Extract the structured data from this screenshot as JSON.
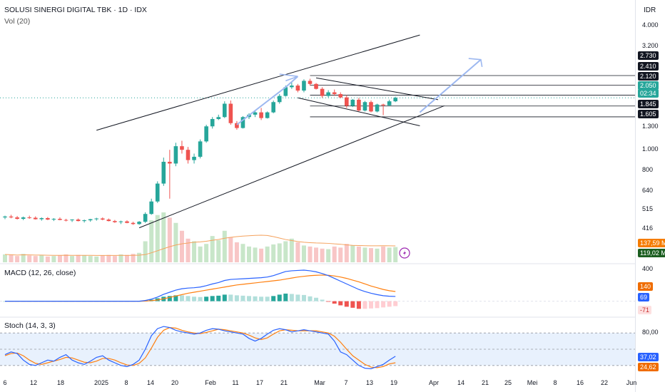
{
  "header": {
    "symbol_line": "SOLUSI SINERGI DIGITAL TBK · 1D · IDX",
    "vol_label": "Vol (20)",
    "currency": "IDR",
    "macd_label": "MACD (12, 26, close)",
    "stoch_label": "Stoch (14, 3, 3)"
  },
  "price_axis": {
    "ticks": [
      "4.000",
      "3.200",
      "1.300",
      "1.000",
      "800",
      "640",
      "515",
      "416"
    ],
    "tags": [
      {
        "text": "2.730",
        "color": "#131722"
      },
      {
        "text": "2.410",
        "color": "#131722"
      },
      {
        "text": "2.120",
        "color": "#131722"
      },
      {
        "text": "2.050",
        "color": "#26a69a"
      },
      {
        "text": "02:34",
        "color": "#26a69a"
      },
      {
        "text": "1.845",
        "color": "#131722"
      },
      {
        "text": "1.605",
        "color": "#131722"
      },
      {
        "text": "137,59 M",
        "color": "#f57c00"
      },
      {
        "text": "119,02 M",
        "color": "#1b5e20"
      }
    ]
  },
  "macd_axis": {
    "ticks": [
      "400"
    ],
    "tags": [
      {
        "text": "140",
        "color": "#ef6c00"
      },
      {
        "text": "69",
        "color": "#2962ff"
      },
      {
        "text": "-71",
        "color": "#ef9a9a"
      }
    ]
  },
  "stoch_axis": {
    "ticks": [
      "80,00"
    ],
    "tags": [
      {
        "text": "37,02",
        "color": "#2962ff"
      },
      {
        "text": "24,62",
        "color": "#ef6c00"
      }
    ]
  },
  "x_axis": [
    "6",
    "12",
    "18",
    "2025",
    "8",
    "14",
    "20",
    "Feb",
    "11",
    "17",
    "21",
    "Mar",
    "7",
    "13",
    "19",
    "Apr",
    "14",
    "21",
    "25",
    "Mei",
    "8",
    "16",
    "22",
    "Jun"
  ],
  "colors": {
    "up": "#26a69a",
    "down": "#ef5350",
    "macd": "#2962ff",
    "signal": "#ff7f0e",
    "grid": "#f0f3fa",
    "trend": "#131722",
    "arrow": "#9db8f0"
  },
  "chart_data": [
    {
      "type": "candlestick",
      "title": "SOLUSI SINERGI DIGITAL TBK · 1D · IDX",
      "y_scale": "log",
      "ylim": [
        350,
        5000
      ],
      "ohlc": [
        [
          440,
          450,
          430,
          445
        ],
        [
          445,
          455,
          435,
          440
        ],
        [
          440,
          448,
          428,
          432
        ],
        [
          432,
          445,
          425,
          440
        ],
        [
          440,
          450,
          432,
          438
        ],
        [
          438,
          446,
          428,
          430
        ],
        [
          430,
          440,
          422,
          436
        ],
        [
          436,
          442,
          425,
          428
        ],
        [
          428,
          436,
          420,
          432
        ],
        [
          432,
          440,
          424,
          426
        ],
        [
          426,
          432,
          418,
          424
        ],
        [
          424,
          430,
          415,
          428
        ],
        [
          428,
          434,
          418,
          420
        ],
        [
          420,
          428,
          412,
          424
        ],
        [
          424,
          432,
          416,
          430
        ],
        [
          430,
          438,
          422,
          434
        ],
        [
          434,
          440,
          424,
          428
        ],
        [
          428,
          434,
          418,
          420
        ],
        [
          420,
          426,
          410,
          414
        ],
        [
          414,
          422,
          404,
          418
        ],
        [
          418,
          424,
          408,
          410
        ],
        [
          410,
          416,
          400,
          404
        ],
        [
          404,
          420,
          400,
          416
        ],
        [
          416,
          470,
          410,
          460
        ],
        [
          460,
          560,
          455,
          540
        ],
        [
          540,
          700,
          530,
          680
        ],
        [
          680,
          950,
          660,
          900
        ],
        [
          900,
          1050,
          560,
          880
        ],
        [
          880,
          1150,
          850,
          1100
        ],
        [
          1100,
          1180,
          1000,
          1050
        ],
        [
          1050,
          1090,
          880,
          920
        ],
        [
          920,
          1000,
          880,
          960
        ],
        [
          960,
          1200,
          940,
          1170
        ],
        [
          1170,
          1450,
          1150,
          1420
        ],
        [
          1420,
          1600,
          1380,
          1560
        ],
        [
          1560,
          1650,
          1540,
          1600
        ],
        [
          1600,
          1960,
          1580,
          1900
        ],
        [
          1900,
          1980,
          1450,
          1480
        ],
        [
          1480,
          1520,
          1360,
          1390
        ],
        [
          1390,
          1620,
          1380,
          1600
        ],
        [
          1600,
          1680,
          1560,
          1650
        ],
        [
          1650,
          1750,
          1600,
          1700
        ],
        [
          1700,
          1800,
          1540,
          1580
        ],
        [
          1580,
          1720,
          1570,
          1700
        ],
        [
          1700,
          1980,
          1680,
          1940
        ],
        [
          1940,
          2150,
          1900,
          2100
        ],
        [
          2100,
          2400,
          2080,
          2350
        ],
        [
          2350,
          2500,
          2300,
          2400
        ],
        [
          2400,
          2450,
          2200,
          2250
        ],
        [
          2250,
          2600,
          2200,
          2550
        ],
        [
          2550,
          2620,
          2400,
          2450
        ],
        [
          2450,
          2480,
          2280,
          2300
        ],
        [
          2300,
          2350,
          2050,
          2100
        ],
        [
          2100,
          2260,
          2060,
          2200
        ],
        [
          2200,
          2280,
          2100,
          2150
        ],
        [
          2150,
          2200,
          2040,
          2060
        ],
        [
          2060,
          2120,
          1800,
          1850
        ],
        [
          1850,
          2020,
          1820,
          2000
        ],
        [
          2000,
          2050,
          1720,
          1740
        ],
        [
          1740,
          1970,
          1720,
          1940
        ],
        [
          1940,
          1980,
          1700,
          1720
        ],
        [
          1720,
          1900,
          1700,
          1880
        ],
        [
          1880,
          1900,
          1640,
          1860
        ],
        [
          1860,
          2000,
          1840,
          1960
        ],
        [
          1960,
          2080,
          1940,
          2050
        ]
      ],
      "trendlines": [
        {
          "name": "upper channel",
          "from": [
            15,
            1350
          ],
          "to": [
            68,
            4600
          ]
        },
        {
          "name": "lower channel",
          "from": [
            22,
            385
          ],
          "to": [
            72,
            1850
          ]
        },
        {
          "name": "flag top",
          "from": [
            51,
            2650
          ],
          "to": [
            71,
            2000
          ]
        },
        {
          "name": "flag bottom",
          "from": [
            48,
            2050
          ],
          "to": [
            68,
            1430
          ]
        }
      ],
      "levels": [
        2730,
        2410,
        2120,
        1845,
        1605
      ]
    },
    {
      "type": "bar",
      "title": "Vol (20)",
      "values": [
        15,
        14,
        12,
        16,
        13,
        12,
        14,
        11,
        12,
        13,
        15,
        12,
        14,
        13,
        12,
        11,
        13,
        14,
        12,
        15,
        14,
        16,
        18,
        40,
        80,
        90,
        95,
        85,
        75,
        60,
        45,
        40,
        30,
        35,
        50,
        42,
        60,
        48,
        38,
        35,
        30,
        28,
        26,
        30,
        34,
        36,
        40,
        45,
        38,
        32,
        30,
        28,
        26,
        25,
        30,
        28,
        35,
        32,
        30,
        28,
        27,
        26,
        30,
        28,
        29
      ],
      "ma": 137.59,
      "last": 119.02
    },
    {
      "type": "line",
      "title": "MACD (12, 26, close)",
      "series": [
        {
          "name": "MACD",
          "values": [
            0,
            0,
            0,
            0,
            0,
            0,
            0,
            0,
            0,
            0,
            0,
            0,
            0,
            0,
            0,
            0,
            0,
            0,
            0,
            0,
            0,
            0,
            0,
            10,
            30,
            60,
            100,
            130,
            160,
            180,
            190,
            195,
            205,
            225,
            250,
            270,
            300,
            315,
            320,
            325,
            330,
            335,
            340,
            350,
            370,
            400,
            430,
            440,
            445,
            450,
            440,
            425,
            400,
            370,
            330,
            290,
            250,
            210,
            170,
            140,
            115,
            95,
            80,
            72,
            69
          ]
        },
        {
          "name": "Signal",
          "values": [
            0,
            0,
            0,
            0,
            0,
            0,
            0,
            0,
            0,
            0,
            0,
            0,
            0,
            0,
            0,
            0,
            0,
            0,
            0,
            0,
            0,
            0,
            0,
            2,
            8,
            18,
            35,
            55,
            75,
            95,
            115,
            130,
            145,
            160,
            175,
            190,
            205,
            220,
            235,
            245,
            255,
            265,
            275,
            285,
            295,
            305,
            320,
            335,
            350,
            360,
            370,
            375,
            378,
            375,
            365,
            350,
            330,
            305,
            280,
            250,
            220,
            195,
            170,
            152,
            140
          ]
        }
      ],
      "histogram": [
        0,
        0,
        0,
        0,
        0,
        0,
        0,
        0,
        0,
        0,
        0,
        0,
        0,
        0,
        0,
        0,
        0,
        0,
        0,
        0,
        0,
        0,
        0,
        8,
        22,
        42,
        65,
        75,
        85,
        85,
        75,
        65,
        60,
        65,
        75,
        80,
        95,
        95,
        85,
        80,
        75,
        70,
        65,
        65,
        75,
        95,
        110,
        105,
        95,
        90,
        70,
        50,
        22,
        -5,
        -35,
        -60,
        -80,
        -95,
        -110,
        -110,
        -105,
        -100,
        -90,
        -80,
        -71
      ]
    },
    {
      "type": "line",
      "title": "Stoch (14, 3, 3)",
      "ylim": [
        0,
        100
      ],
      "series": [
        {
          "name": "%K",
          "values": [
            40,
            45,
            42,
            30,
            22,
            20,
            25,
            30,
            28,
            35,
            40,
            30,
            25,
            22,
            28,
            35,
            38,
            30,
            25,
            20,
            18,
            22,
            30,
            50,
            75,
            88,
            92,
            90,
            85,
            82,
            80,
            78,
            80,
            85,
            88,
            87,
            84,
            82,
            80,
            78,
            70,
            65,
            70,
            78,
            85,
            88,
            86,
            82,
            84,
            86,
            84,
            82,
            80,
            78,
            65,
            45,
            40,
            30,
            20,
            15,
            14,
            18,
            22,
            30,
            37
          ]
        },
        {
          "name": "%D",
          "values": [
            38,
            42,
            43,
            38,
            30,
            24,
            22,
            25,
            28,
            31,
            35,
            34,
            30,
            26,
            25,
            28,
            33,
            33,
            30,
            25,
            21,
            20,
            24,
            34,
            52,
            72,
            85,
            90,
            89,
            85,
            82,
            80,
            79,
            81,
            84,
            87,
            86,
            84,
            82,
            80,
            76,
            71,
            68,
            71,
            78,
            84,
            86,
            85,
            84,
            84,
            84,
            84,
            82,
            80,
            74,
            63,
            50,
            38,
            30,
            22,
            17,
            16,
            18,
            23,
            25
          ]
        }
      ],
      "bands": [
        80,
        50,
        20
      ]
    }
  ]
}
